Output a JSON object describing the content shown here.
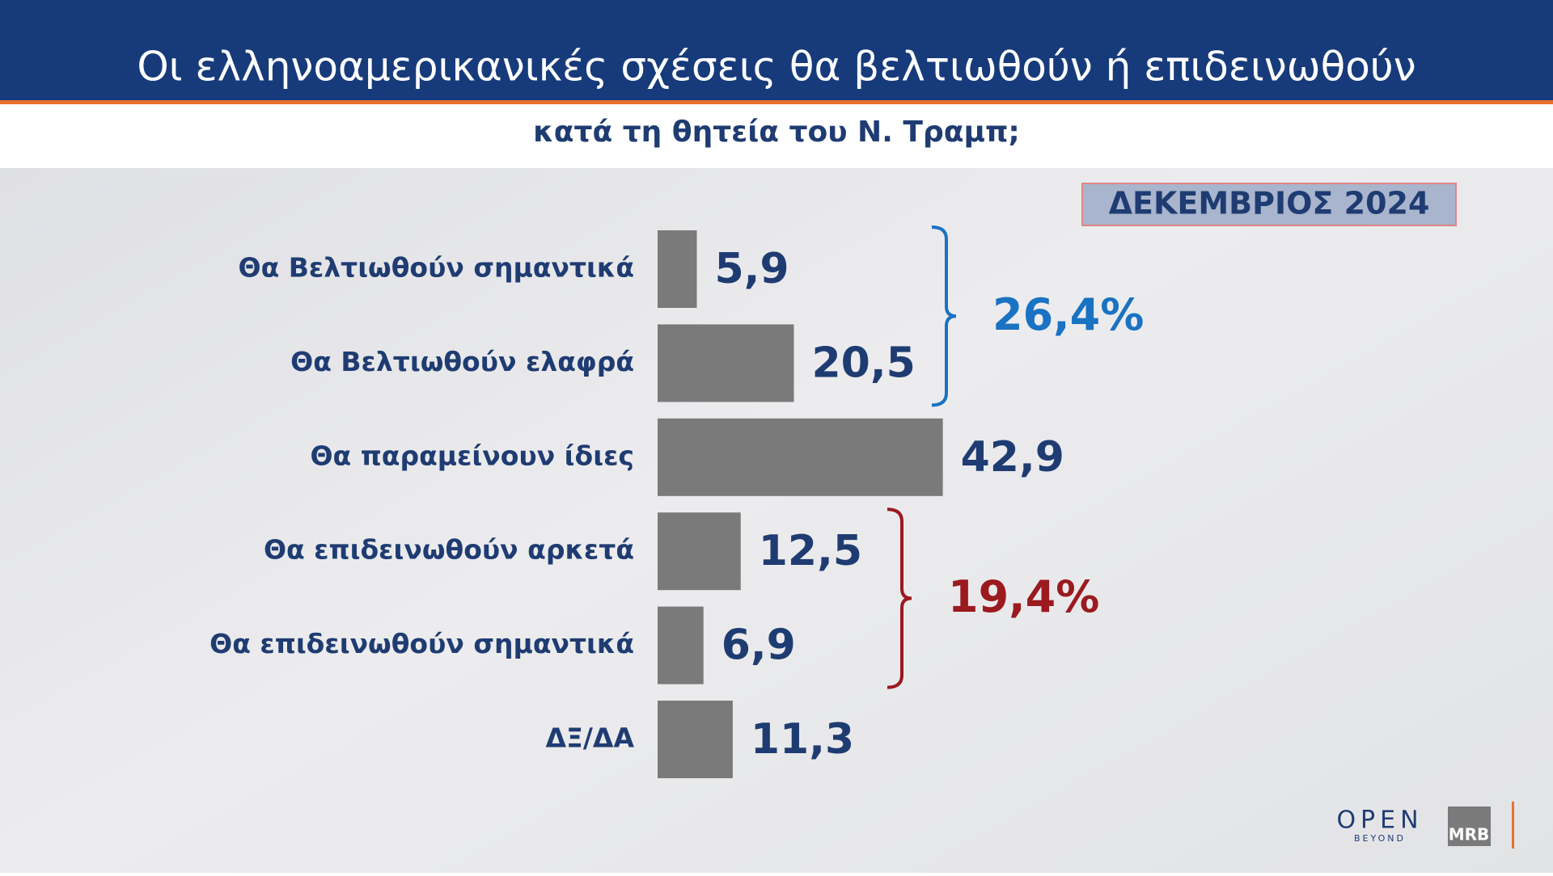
{
  "chart_data": {
    "type": "bar",
    "orientation": "horizontal",
    "title": "Οι ελληνοαμερικανικές σχέσεις θα βελτιωθούν ή επιδεινωθούν",
    "subtitle": "κατά τη θητεία του Ν. Τραμπ;",
    "date_badge": "ΔΕΚΕΜΒΡΙΟΣ 2024",
    "categories": [
      "Θα Βελτιωθούν σημαντικά",
      "Θα Βελτιωθούν ελαφρά",
      "Θα παραμείνουν ίδιες",
      "Θα επιδεινωθούν αρκετά",
      "Θα επιδεινωθούν σημαντικά",
      "ΔΞ/ΔΑ"
    ],
    "values": [
      5.9,
      20.5,
      42.9,
      12.5,
      6.9,
      11.3
    ],
    "value_labels": [
      "5,9",
      "20,5",
      "42,9",
      "12,5",
      "6,9",
      "11,3"
    ],
    "color": "#7a7a7a",
    "groups": [
      {
        "value": 26.4,
        "label": "26,4%",
        "color": "#1a72c2"
      },
      {
        "value": 19.4,
        "label": "19,4%",
        "color": "#9b1a1f"
      }
    ],
    "logos": {
      "open": "OPEN",
      "open_tagline": "BEYOND",
      "mrb": "MRB"
    }
  }
}
